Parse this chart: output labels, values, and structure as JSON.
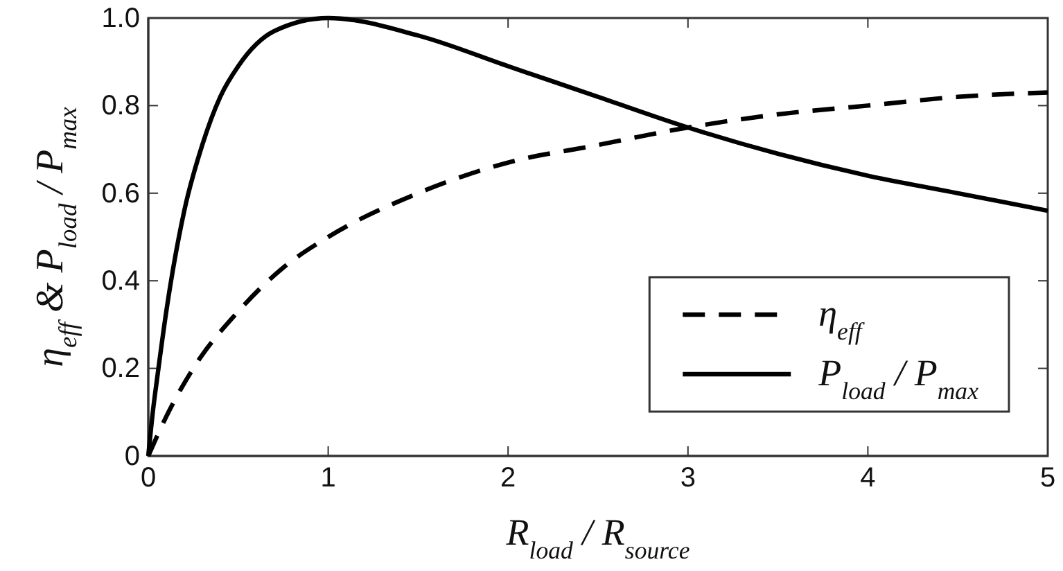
{
  "chart_data": {
    "type": "line",
    "xlabel": "R$_{load}$ / R$_{source}$",
    "ylabel": "η$_{eff}$  & P$_{load}$ / P$_{max}$",
    "series": [
      {
        "name": "η$_{eff}$",
        "color": "#000000",
        "line_style": "dashed",
        "x": [
          0,
          0.1,
          0.25,
          0.5,
          0.75,
          1,
          1.5,
          2,
          2.5,
          3,
          3.5,
          4,
          4.5,
          5
        ],
        "values": [
          0,
          0.09,
          0.2,
          0.33,
          0.43,
          0.5,
          0.6,
          0.67,
          0.71,
          0.75,
          0.78,
          0.8,
          0.82,
          0.83
        ]
      },
      {
        "name": "P$_{load}$ / P$_{max}$",
        "color": "#000000",
        "line_style": "solid",
        "x": [
          0,
          0.025,
          0.05,
          0.1,
          0.2,
          0.3,
          0.4,
          0.5,
          0.7,
          1,
          1.5,
          2,
          2.5,
          3,
          3.5,
          4,
          4.5,
          5
        ],
        "values": [
          0,
          0.1,
          0.18,
          0.33,
          0.56,
          0.71,
          0.82,
          0.89,
          0.97,
          1,
          0.96,
          0.89,
          0.82,
          0.75,
          0.69,
          0.64,
          0.6,
          0.56
        ]
      }
    ],
    "xlim": [
      0,
      5
    ],
    "ylim": [
      0,
      1
    ],
    "xticks": [
      0,
      1,
      2,
      3,
      4,
      5
    ],
    "yticks": [
      0,
      0.2,
      0.4,
      0.6,
      0.8,
      {
        "value": 1,
        "label": "1.0"
      }
    ],
    "legend": "bottom right"
  }
}
